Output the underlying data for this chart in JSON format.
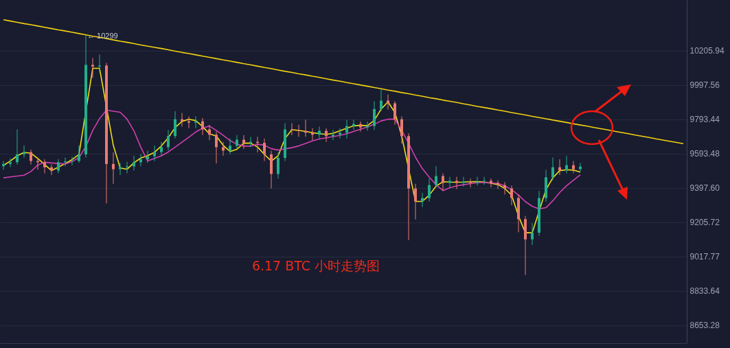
{
  "chart_data": {
    "type": "candlestick",
    "categories": [
      null,
      null,
      null,
      null,
      null,
      null,
      null,
      null,
      null,
      null,
      null,
      null,
      null,
      null,
      null,
      null,
      null,
      null,
      null,
      null,
      null,
      null,
      null,
      null,
      null,
      null,
      null,
      null,
      null,
      null,
      null,
      null,
      null,
      null,
      null,
      null,
      null,
      null,
      null,
      null,
      null,
      null,
      null,
      null,
      null,
      null,
      null,
      null,
      null,
      null,
      null,
      null,
      null,
      null,
      null,
      null,
      null,
      null,
      null,
      null,
      null,
      null,
      null,
      null,
      null,
      null,
      null,
      null,
      null,
      null,
      null,
      null,
      null,
      null,
      null,
      null,
      null,
      null,
      null,
      null,
      null,
      null,
      null,
      null,
      null,
      null,
      null,
      null,
      null,
      null,
      null,
      null,
      null,
      null,
      null,
      null,
      null,
      null,
      null,
      null
    ],
    "ohlc": [
      [
        9520,
        9550,
        9500,
        9533
      ],
      [
        9533,
        9565,
        9515,
        9543
      ],
      [
        9543,
        9733,
        9530,
        9588
      ],
      [
        9588,
        9640,
        9570,
        9601
      ],
      [
        9601,
        9615,
        9530,
        9550
      ],
      [
        9550,
        9570,
        9500,
        9543
      ],
      [
        9543,
        9560,
        9480,
        9514
      ],
      [
        9514,
        9530,
        9470,
        9495
      ],
      [
        9495,
        9560,
        9480,
        9543
      ],
      [
        9543,
        9570,
        9520,
        9548
      ],
      [
        9548,
        9575,
        9525,
        9550
      ],
      [
        9550,
        9640,
        9540,
        9588
      ],
      [
        9588,
        10299,
        9570,
        10118
      ],
      [
        10118,
        10160,
        10040,
        10108
      ],
      [
        10108,
        10181,
        10070,
        10114
      ],
      [
        10114,
        10130,
        9310,
        9533
      ],
      [
        9533,
        9600,
        9420,
        9503
      ],
      [
        9503,
        9540,
        9470,
        9514
      ],
      [
        9514,
        9545,
        9480,
        9519
      ],
      [
        9519,
        9580,
        9495,
        9543
      ],
      [
        9543,
        9590,
        9520,
        9560
      ],
      [
        9560,
        9610,
        9540,
        9577
      ],
      [
        9577,
        9640,
        9550,
        9601
      ],
      [
        9601,
        9660,
        9580,
        9630
      ],
      [
        9630,
        9730,
        9610,
        9694
      ],
      [
        9694,
        9840,
        9680,
        9793
      ],
      [
        9793,
        9830,
        9750,
        9781
      ],
      [
        9781,
        9810,
        9740,
        9773
      ],
      [
        9773,
        9810,
        9740,
        9781
      ],
      [
        9781,
        9800,
        9700,
        9733
      ],
      [
        9733,
        9760,
        9670,
        9702
      ],
      [
        9702,
        9720,
        9536,
        9630
      ],
      [
        9630,
        9660,
        9580,
        9610
      ],
      [
        9610,
        9680,
        9590,
        9638
      ],
      [
        9638,
        9700,
        9620,
        9673
      ],
      [
        9673,
        9700,
        9620,
        9653
      ],
      [
        9653,
        9690,
        9630,
        9661
      ],
      [
        9661,
        9690,
        9600,
        9655
      ],
      [
        9655,
        9680,
        9550,
        9588
      ],
      [
        9588,
        9610,
        9394,
        9476
      ],
      [
        9476,
        9600,
        9450,
        9568
      ],
      [
        9568,
        9770,
        9550,
        9733
      ],
      [
        9733,
        9770,
        9700,
        9728
      ],
      [
        9728,
        9760,
        9690,
        9725
      ],
      [
        9725,
        9790,
        9690,
        9714
      ],
      [
        9714,
        9740,
        9670,
        9702
      ],
      [
        9702,
        9750,
        9680,
        9725
      ],
      [
        9725,
        9740,
        9660,
        9694
      ],
      [
        9694,
        9730,
        9670,
        9702
      ],
      [
        9702,
        9740,
        9680,
        9714
      ],
      [
        9714,
        9790,
        9680,
        9753
      ],
      [
        9753,
        9790,
        9730,
        9765
      ],
      [
        9765,
        9780,
        9720,
        9745
      ],
      [
        9745,
        9780,
        9725,
        9753
      ],
      [
        9753,
        9900,
        9730,
        9853
      ],
      [
        9853,
        9972,
        9840,
        9903
      ],
      [
        9903,
        9940,
        9850,
        9887
      ],
      [
        9887,
        9900,
        9760,
        9793
      ],
      [
        9793,
        9810,
        9650,
        9694
      ],
      [
        9694,
        9710,
        9107,
        9394
      ],
      [
        9394,
        9420,
        9221,
        9321
      ],
      [
        9321,
        9370,
        9290,
        9340
      ],
      [
        9340,
        9450,
        9320,
        9413
      ],
      [
        9413,
        9520,
        9400,
        9464
      ],
      [
        9464,
        9480,
        9380,
        9425
      ],
      [
        9425,
        9460,
        9400,
        9437
      ],
      [
        9437,
        9460,
        9390,
        9425
      ],
      [
        9425,
        9460,
        9405,
        9433
      ],
      [
        9433,
        9450,
        9400,
        9425
      ],
      [
        9425,
        9460,
        9410,
        9433
      ],
      [
        9433,
        9460,
        9415,
        9437
      ],
      [
        9437,
        9450,
        9400,
        9425
      ],
      [
        9425,
        9440,
        9390,
        9413
      ],
      [
        9413,
        9430,
        9360,
        9394
      ],
      [
        9394,
        9410,
        9300,
        9340
      ],
      [
        9340,
        9360,
        9150,
        9222
      ],
      [
        9222,
        9240,
        8918,
        9111
      ],
      [
        9111,
        9200,
        9080,
        9148
      ],
      [
        9148,
        9380,
        9130,
        9340
      ],
      [
        9340,
        9500,
        9320,
        9457
      ],
      [
        9457,
        9570,
        9440,
        9514
      ],
      [
        9514,
        9560,
        9470,
        9495
      ],
      [
        9495,
        9580,
        9480,
        9526
      ],
      [
        9526,
        9550,
        9480,
        9503
      ],
      [
        9503,
        9540,
        9490,
        9518
      ],
      null,
      null,
      null,
      null,
      null,
      null,
      null,
      null,
      null,
      null,
      null,
      null,
      null,
      null,
      null
    ],
    "series": [
      {
        "type": "line",
        "color": "#f0dc14",
        "values": [
          9525,
          9550,
          9580,
          9600,
          9595,
          9565,
          9530,
          9495,
          9515,
          9535,
          9558,
          9588,
          null,
          10097,
          10097,
          null,
          9640,
          9510,
          9503,
          9540,
          9567,
          9581,
          9600,
          9637,
          9684,
          9744,
          9780,
          9793,
          9785,
          9750,
          9707,
          9694,
          9640,
          9605,
          9618,
          9653,
          9653,
          9631,
          9588,
          9550,
          9580,
          9680,
          9731,
          9727,
          9721,
          9714,
          9708,
          9704,
          9710,
          9725,
          9740,
          9754,
          9757,
          9755,
          9786,
          9853,
          9895,
          9833,
          9694,
          null,
          9321,
          9321,
          9356,
          9407,
          9432,
          9430,
          9429,
          9430,
          9432,
          9433,
          9430,
          9423,
          9416,
          9394,
          9356,
          9240,
          9147,
          9147,
          null,
          9387,
          9454,
          9495,
          9500,
          9498,
          9487,
          null,
          null,
          null,
          null,
          null,
          null,
          null,
          null,
          null,
          null,
          null,
          null,
          null,
          null,
          null
        ]
      },
      {
        "type": "line",
        "color": "#d23fb0",
        "values": [
          9454,
          9459,
          9464,
          9469,
          9490,
          9527,
          9543,
          9539,
          9536,
          9533,
          9547,
          9569,
          9634,
          9727,
          9797,
          9846,
          9840,
          9834,
          9793,
          9725,
          9630,
          9550,
          9565,
          9580,
          9602,
          9630,
          9659,
          9688,
          9718,
          9740,
          9753,
          9727,
          9699,
          9668,
          9647,
          9636,
          9636,
          9647,
          9642,
          9621,
          9613,
          9620,
          9627,
          9637,
          9651,
          9666,
          9677,
          9684,
          9691,
          9698,
          9708,
          9721,
          9734,
          9747,
          9763,
          9783,
          9793,
          9793,
          9727,
          9653,
          9572,
          9507,
          9458,
          9415,
          9382,
          9398,
          9409,
          9415,
          9421,
          9426,
          9428,
          9425,
          9422,
          9409,
          9387,
          9357,
          9320,
          9294,
          9279,
          9286,
          9325,
          9371,
          9409,
          9440,
          9471,
          null,
          null,
          null,
          null,
          null,
          null,
          null,
          null,
          null,
          null,
          null,
          null,
          null,
          null,
          null
        ]
      },
      {
        "type": "line",
        "color": "#f5d210",
        "values": [
          10396,
          10388,
          10380,
          10372,
          10365,
          10357,
          10349,
          10341,
          10333,
          10326,
          10318,
          10310,
          10302,
          10294,
          10287,
          10279,
          10271,
          10263,
          10256,
          10248,
          10240,
          10232,
          10225,
          10218,
          10210,
          10202,
          10194,
          10187,
          10179,
          10171,
          10164,
          10156,
          10148,
          10141,
          10133,
          10125,
          10118,
          10110,
          10102,
          10095,
          10087,
          10079,
          10072,
          10064,
          10057,
          10049,
          10042,
          10034,
          10026,
          10019,
          10011,
          10004,
          9996,
          9989,
          9981,
          9974,
          9966,
          9959,
          9951,
          9944,
          9936,
          9929,
          9921,
          9914,
          9906,
          9899,
          9892,
          9884,
          9877,
          9869,
          9862,
          9855,
          9847,
          9840,
          9832,
          9825,
          9818,
          9810,
          9803,
          9796,
          9788,
          9781,
          9774,
          9766,
          9759,
          9752,
          9744,
          9737,
          9730,
          9722,
          9715,
          9708,
          9700,
          9693,
          9686,
          9678,
          9671,
          9664,
          9657,
          9650
        ]
      }
    ],
    "ylim": [
      8560,
      10520
    ],
    "yticks": [
      8653.28,
      8833.64,
      9017.77,
      9205.72,
      {
        "value": 9397.6,
        "label": "9397.60"
      },
      9593.48,
      9793.44,
      9997.56,
      10205.94
    ],
    "log": "y",
    "grid": "y",
    "tick_labels": "y",
    "annotations": [
      "6.17 BTC 小时走势图",
      {
        "text": "← 10299",
        "y": 10299
      }
    ]
  }
}
